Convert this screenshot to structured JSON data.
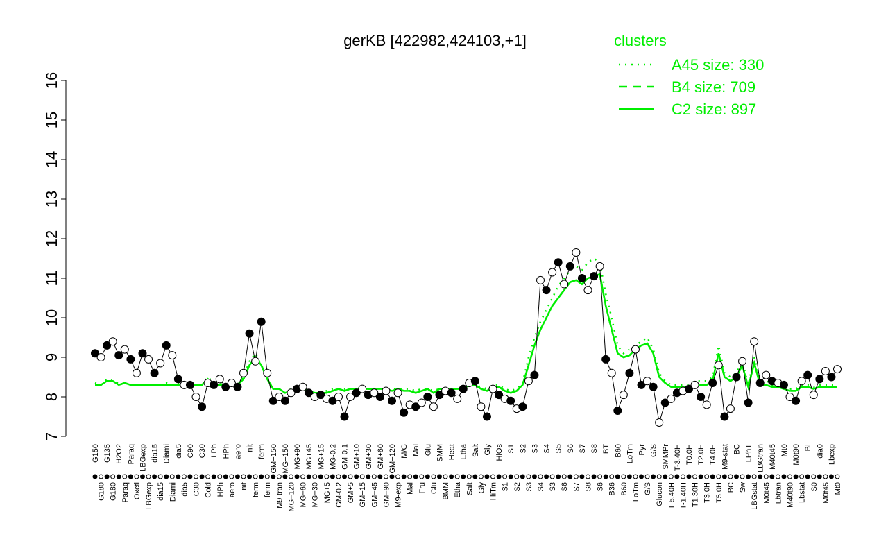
{
  "chart_data": {
    "type": "line",
    "title": "gerKB [422982,424103,+1]",
    "categories": [
      "G150",
      "G180",
      "G135",
      "G180",
      "H2O2",
      "Paraq",
      "Paraq",
      "Oxctl",
      "LBGexp",
      "LBGexp",
      "dia15",
      "dia15",
      "Diami",
      "Diami",
      "dia5",
      "dia5",
      "C90",
      "C30",
      "C30",
      "Cold",
      "LPh",
      "HPh",
      "HPh",
      "aero",
      "aero",
      "nit",
      "nit",
      "ferm",
      "ferm",
      "ferm",
      "GM+150",
      "M9-tran",
      "MG+150",
      "MG+120",
      "MG+90",
      "MG+60",
      "MG+45",
      "MG+30",
      "MG+15",
      "MG+5",
      "MG-0.2",
      "GM-0.2",
      "GM-0.1",
      "GM+5",
      "GM+10",
      "GM+15",
      "GM+30",
      "GM+45",
      "GM+60",
      "GM+90",
      "GM+120",
      "M9-exp",
      "M/G",
      "Mal",
      "Mal",
      "Fru",
      "Glu",
      "Glu",
      "SMM",
      "BMM",
      "Heat",
      "Etha",
      "Etha",
      "Salt",
      "Salt",
      "Gly",
      "Gly",
      "HiTm",
      "HiOs",
      "S1",
      "S1",
      "S2",
      "S2",
      "S3",
      "S3",
      "S4",
      "S4",
      "S3",
      "S5",
      "S6",
      "S6",
      "S7",
      "S7",
      "S8",
      "S8",
      "S6",
      "BT",
      "B36",
      "B60",
      "B60",
      "LoTm",
      "LoTm",
      "Pyr",
      "G/S",
      "G/S",
      "Glucon",
      "SMMPr",
      "T-5.40H",
      "T-3.40H",
      "T-1.40H",
      "T0.0H",
      "T1.30H",
      "T2.0H",
      "T3.0H",
      "T4.0H",
      "T5.0H",
      "M9-stat",
      "BC",
      "BC",
      "Sw",
      "LPhT",
      "LBGstat",
      "LBGtran",
      "M0t45",
      "M40t45",
      "Lbtran",
      "Mt0",
      "M40t90",
      "M0t90",
      "Lbstat",
      "BI",
      "S0",
      "dia0",
      "M0t45",
      "Lbexp",
      "Mt0"
    ],
    "values": [
      9.1,
      9.0,
      9.3,
      9.4,
      9.05,
      9.2,
      8.95,
      8.6,
      9.1,
      8.95,
      8.6,
      8.85,
      9.3,
      9.05,
      8.45,
      8.3,
      8.3,
      8.0,
      7.75,
      8.35,
      8.3,
      8.45,
      8.25,
      8.35,
      8.25,
      8.6,
      9.6,
      8.9,
      9.9,
      8.6,
      7.9,
      8.0,
      7.9,
      8.1,
      8.2,
      8.25,
      8.1,
      8.0,
      8.05,
      7.95,
      7.9,
      8.0,
      7.5,
      8.0,
      8.1,
      8.2,
      8.05,
      8.1,
      8.0,
      8.15,
      7.9,
      8.1,
      7.6,
      7.8,
      7.75,
      7.85,
      8.0,
      7.75,
      8.05,
      8.15,
      8.1,
      7.95,
      8.2,
      8.35,
      8.4,
      7.75,
      7.5,
      8.2,
      8.05,
      7.95,
      7.9,
      7.7,
      7.75,
      8.4,
      8.55,
      10.95,
      10.7,
      11.15,
      11.4,
      10.85,
      11.3,
      11.65,
      11.0,
      10.7,
      11.05,
      11.3,
      8.95,
      8.6,
      7.65,
      8.05,
      8.6,
      9.2,
      8.3,
      8.4,
      8.25,
      7.35,
      7.85,
      7.95,
      8.1,
      8.15,
      8.2,
      8.3,
      8.0,
      7.8,
      8.35,
      8.8,
      7.5,
      7.7,
      8.5,
      8.9,
      7.85,
      9.4,
      8.35,
      8.55,
      8.4,
      8.35,
      8.3,
      8.0,
      7.9,
      8.4,
      8.55,
      8.05,
      8.45,
      8.65,
      8.5,
      8.7
    ],
    "color": "#000000",
    "legend_title": "clusters",
    "series": [
      {
        "name": "A45 size: 330",
        "color": "#00ee00",
        "linestyle": "dotted",
        "values": [
          8.35,
          8.3,
          8.45,
          8.4,
          8.35,
          8.35,
          8.3,
          8.3,
          8.3,
          8.3,
          8.3,
          8.3,
          8.35,
          8.3,
          8.35,
          8.3,
          8.35,
          8.3,
          8.3,
          8.5,
          8.35,
          8.35,
          8.3,
          8.3,
          8.3,
          8.5,
          8.9,
          9.1,
          8.8,
          8.5,
          8.2,
          8.2,
          8.1,
          8.2,
          8.2,
          8.2,
          8.15,
          8.1,
          8.1,
          8.15,
          8.2,
          8.2,
          8.2,
          8.2,
          8.2,
          8.2,
          8.2,
          8.2,
          8.2,
          8.2,
          8.2,
          8.2,
          8.2,
          8.2,
          8.15,
          8.2,
          8.2,
          8.15,
          8.2,
          8.2,
          8.2,
          8.2,
          8.2,
          8.3,
          8.3,
          8.25,
          8.2,
          8.3,
          8.3,
          8.2,
          8.15,
          8.2,
          8.35,
          9.0,
          9.5,
          9.9,
          10.2,
          10.5,
          10.8,
          11.0,
          11.2,
          11.3,
          11.2,
          11.4,
          11.5,
          11.4,
          10.6,
          10.0,
          9.3,
          9.1,
          9.2,
          9.3,
          9.4,
          9.5,
          9.2,
          8.6,
          8.4,
          8.3,
          8.3,
          8.3,
          8.3,
          8.4,
          8.4,
          8.4,
          8.5,
          9.3,
          8.6,
          8.5,
          8.6,
          8.9,
          8.3,
          9.0,
          8.4,
          8.4,
          8.3,
          8.3,
          8.25,
          8.2,
          8.2,
          8.3,
          8.3,
          8.25,
          8.3,
          8.3,
          8.3,
          8.3
        ]
      },
      {
        "name": "B4 size: 709",
        "color": "#00ee00",
        "linestyle": "dashed",
        "values": [
          8.3,
          8.3,
          8.4,
          8.4,
          8.3,
          8.35,
          8.3,
          8.3,
          8.3,
          8.3,
          8.3,
          8.3,
          8.3,
          8.3,
          8.3,
          8.3,
          8.3,
          8.3,
          8.3,
          8.45,
          8.3,
          8.3,
          8.3,
          8.3,
          8.3,
          8.45,
          8.8,
          9.0,
          8.8,
          8.45,
          8.2,
          8.2,
          8.1,
          8.15,
          8.2,
          8.2,
          8.15,
          8.1,
          8.1,
          8.1,
          8.15,
          8.2,
          8.15,
          8.2,
          8.2,
          8.2,
          8.2,
          8.2,
          8.2,
          8.2,
          8.15,
          8.2,
          8.15,
          8.15,
          8.1,
          8.15,
          8.2,
          8.1,
          8.2,
          8.2,
          8.2,
          8.2,
          8.2,
          8.3,
          8.3,
          8.2,
          8.15,
          8.25,
          8.25,
          8.15,
          8.1,
          8.15,
          8.3,
          8.8,
          9.3,
          9.7,
          10.0,
          10.3,
          10.5,
          10.7,
          10.9,
          10.95,
          10.85,
          11.0,
          11.05,
          11.1,
          10.3,
          9.7,
          9.1,
          9.0,
          9.05,
          9.2,
          9.3,
          9.35,
          9.1,
          8.5,
          8.35,
          8.25,
          8.25,
          8.25,
          8.25,
          8.3,
          8.3,
          8.3,
          8.4,
          9.1,
          8.5,
          8.4,
          8.5,
          8.8,
          8.25,
          8.85,
          8.3,
          8.3,
          8.25,
          8.25,
          8.2,
          8.15,
          8.15,
          8.25,
          8.25,
          8.2,
          8.25,
          8.25,
          8.25,
          8.25
        ]
      },
      {
        "name": "C2 size: 897",
        "color": "#00ee00",
        "linestyle": "solid",
        "values": [
          8.3,
          8.3,
          8.4,
          8.4,
          8.3,
          8.35,
          8.3,
          8.3,
          8.3,
          8.3,
          8.3,
          8.3,
          8.3,
          8.3,
          8.3,
          8.3,
          8.3,
          8.3,
          8.3,
          8.45,
          8.3,
          8.3,
          8.3,
          8.3,
          8.3,
          8.45,
          8.8,
          9.0,
          8.8,
          8.45,
          8.2,
          8.2,
          8.1,
          8.15,
          8.2,
          8.2,
          8.15,
          8.1,
          8.1,
          8.1,
          8.15,
          8.2,
          8.15,
          8.2,
          8.2,
          8.2,
          8.2,
          8.2,
          8.2,
          8.2,
          8.15,
          8.2,
          8.15,
          8.15,
          8.1,
          8.15,
          8.2,
          8.1,
          8.2,
          8.2,
          8.2,
          8.2,
          8.2,
          8.3,
          8.3,
          8.2,
          8.15,
          8.25,
          8.25,
          8.15,
          8.1,
          8.15,
          8.3,
          8.8,
          9.3,
          9.7,
          10.0,
          10.3,
          10.5,
          10.7,
          10.9,
          10.95,
          10.85,
          11.0,
          11.05,
          11.1,
          10.3,
          9.7,
          9.1,
          9.0,
          9.05,
          9.2,
          9.3,
          9.35,
          9.1,
          8.5,
          8.35,
          8.25,
          8.25,
          8.25,
          8.25,
          8.3,
          8.3,
          8.3,
          8.4,
          9.1,
          8.5,
          8.4,
          8.5,
          8.8,
          8.25,
          8.85,
          8.3,
          8.3,
          8.25,
          8.25,
          8.2,
          8.15,
          8.15,
          8.25,
          8.25,
          8.2,
          8.25,
          8.25,
          8.25,
          8.25
        ]
      }
    ],
    "ylim": [
      7,
      16
    ],
    "yticks": [
      7,
      8,
      9,
      10,
      11,
      12,
      13,
      14,
      15,
      16
    ],
    "legend": "top-right"
  }
}
